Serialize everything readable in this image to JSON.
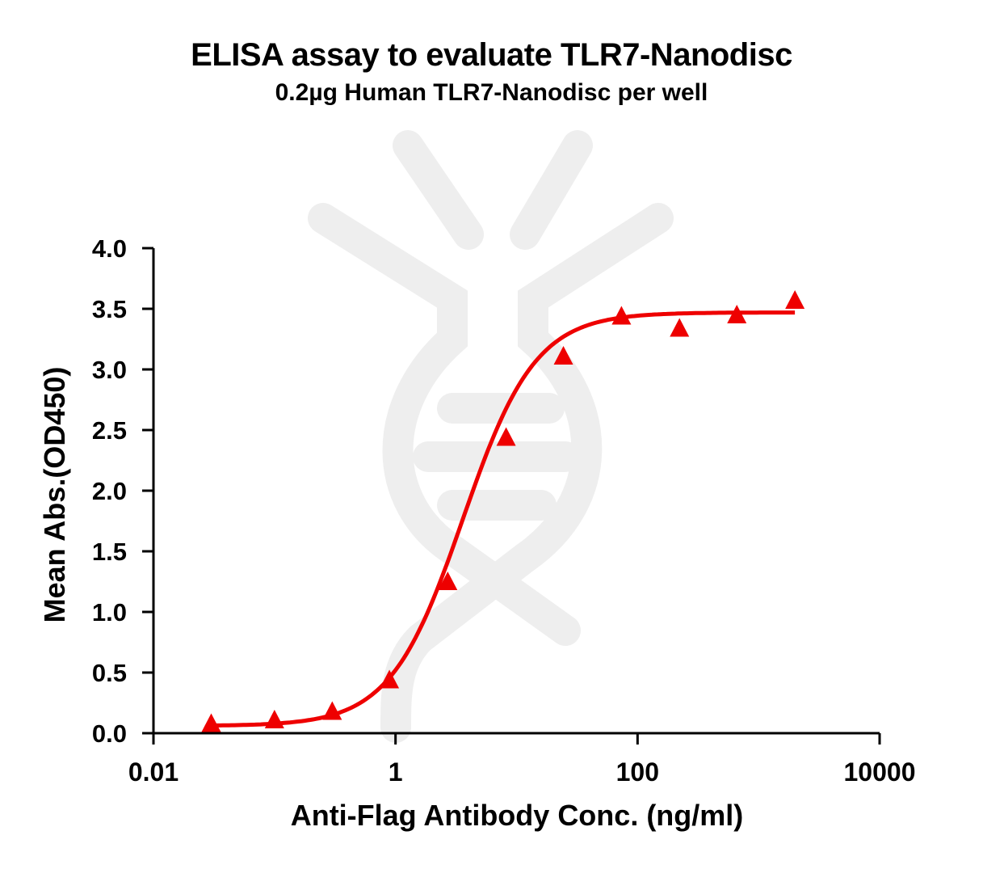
{
  "title": "ELISA assay to evaluate TLR7-Nanodisc",
  "subtitle": "0.2µg Human TLR7-Nanodisc per well",
  "colors": {
    "series": "#ee0000",
    "axis": "#000000",
    "watermark": "#eeeeee"
  },
  "chart_data": {
    "type": "scatter",
    "title": "ELISA assay to evaluate TLR7-Nanodisc",
    "subtitle": "0.2µg Human TLR7-Nanodisc per well",
    "xlabel": "Anti-Flag Antibody Conc. (ng/ml)",
    "ylabel": "Mean Abs.(OD450)",
    "xscale": "log",
    "xlim": [
      0.01,
      10000
    ],
    "ylim": [
      0,
      4.0
    ],
    "xticks": [
      0.01,
      1,
      100,
      10000
    ],
    "xtick_labels": [
      "0.01",
      "1",
      "100",
      "10000"
    ],
    "yticks": [
      0.0,
      0.5,
      1.0,
      1.5,
      2.0,
      2.5,
      3.0,
      3.5,
      4.0
    ],
    "ytick_labels": [
      "0.0",
      "0.5",
      "1.0",
      "1.5",
      "2.0",
      "2.5",
      "3.0",
      "3.5",
      "4.0"
    ],
    "grid": false,
    "legend": null,
    "series": [
      {
        "name": "TLR7-Nanodisc",
        "marker": "triangle",
        "color": "#ee0000",
        "x": [
          0.03,
          0.1,
          0.3,
          0.89,
          2.7,
          8.2,
          24.4,
          73.6,
          222,
          661,
          1996
        ],
        "y": [
          0.07,
          0.1,
          0.17,
          0.43,
          1.24,
          2.43,
          3.1,
          3.43,
          3.33,
          3.44,
          3.56
        ]
      }
    ],
    "fit": {
      "type": "4PL sigmoid",
      "bottom": 0.06,
      "top": 3.47,
      "ec50": 3.6,
      "hill": 1.45
    }
  }
}
